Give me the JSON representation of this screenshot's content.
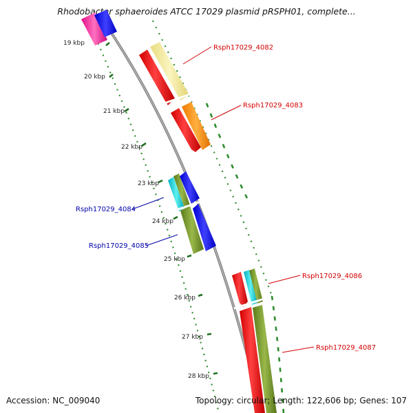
{
  "title": "Rhodobacter sphaeroides ATCC 17029 plasmid pRSPH01, complete...",
  "footer": {
    "accession_label": "Accession:",
    "accession": "NC_009040",
    "topology": "Topology: circular;",
    "length": "Length: 122,606 bp;",
    "genes": "Genes: 107"
  },
  "ticks": [
    "19 kbp",
    "20 kbp",
    "21 kbp",
    "22 kbp",
    "23 kbp",
    "24 kbp",
    "25 kbp",
    "26 kbp",
    "27 kbp",
    "28 kbp"
  ],
  "genes": [
    {
      "name": "Rsph17029_4082",
      "strand": "forward",
      "color": "#d40000"
    },
    {
      "name": "Rsph17029_4083",
      "strand": "forward",
      "color": "#d40000"
    },
    {
      "name": "Rsph17029_4084",
      "strand": "reverse",
      "color": "#0000aa"
    },
    {
      "name": "Rsph17029_4085",
      "strand": "reverse",
      "color": "#0000aa"
    },
    {
      "name": "Rsph17029_4086",
      "strand": "forward",
      "color": "#d40000"
    },
    {
      "name": "Rsph17029_4087",
      "strand": "forward",
      "color": "#d40000"
    }
  ],
  "colors": {
    "backbone": "#888888",
    "gc_dots": "#2e8b2e",
    "cds_red": "#ff0000",
    "cog_yellow": "#f0e68c",
    "cog_orange": "#ff8c00",
    "cog_blue": "#0000ff",
    "cog_cyan": "#00c8d2",
    "cog_olive": "#6b8e23",
    "cog_pink": "#ff1493"
  }
}
